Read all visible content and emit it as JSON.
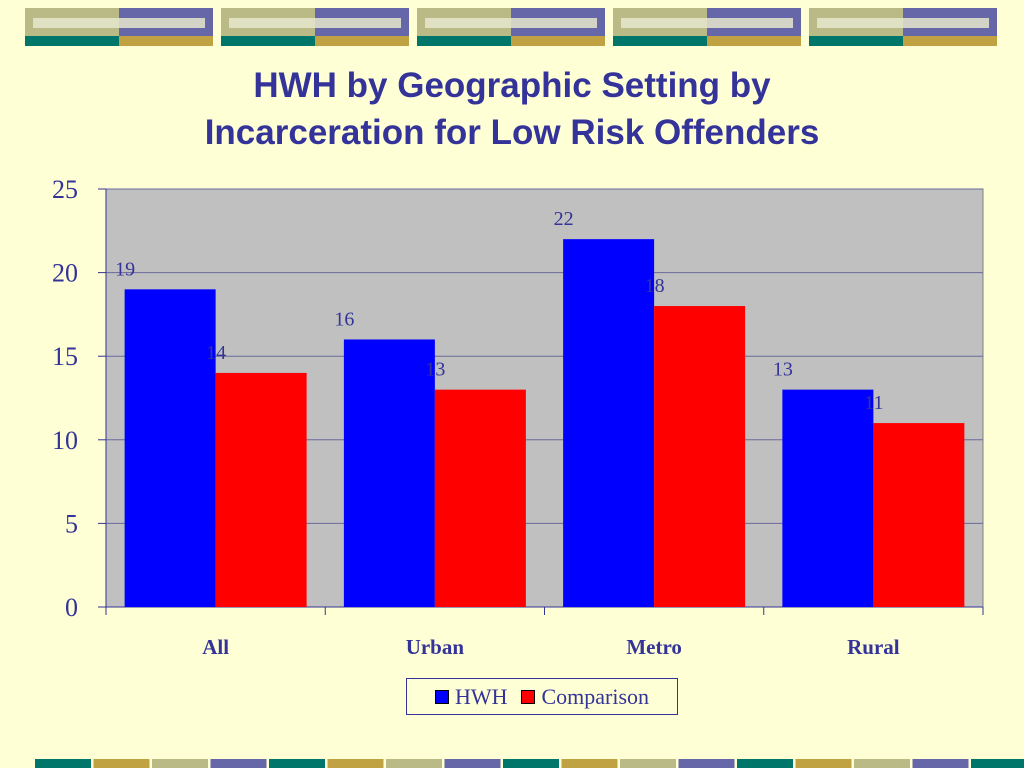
{
  "title_line1": "HWH by Geographic Setting by",
  "title_line2": "Incarceration for Low Risk Offenders",
  "colors": {
    "background": "#FFFFD5",
    "plot_area": "#C0C0C0",
    "text": "#333399",
    "hwh": "#0000FF",
    "comparison": "#FF0000",
    "band_olive": "#B9BA86",
    "band_purple": "#6667A8",
    "band_teal": "#00766A",
    "band_gold": "#C0A243",
    "band_light": "#E6E8CC"
  },
  "chart_data": {
    "type": "bar",
    "title": "HWH by Geographic Setting by Incarceration for Low Risk Offenders",
    "categories": [
      "All",
      "Urban",
      "Metro",
      "Rural"
    ],
    "series": [
      {
        "name": "HWH",
        "values": [
          19,
          16,
          22,
          13
        ]
      },
      {
        "name": "Comparison",
        "values": [
          14,
          13,
          18,
          11
        ]
      }
    ],
    "xlabel": "",
    "ylabel": "",
    "ylim": [
      0,
      25
    ],
    "yticks": [
      0,
      5,
      10,
      15,
      20,
      25
    ],
    "grid": true,
    "legend": "bottom",
    "data_labels": true
  }
}
